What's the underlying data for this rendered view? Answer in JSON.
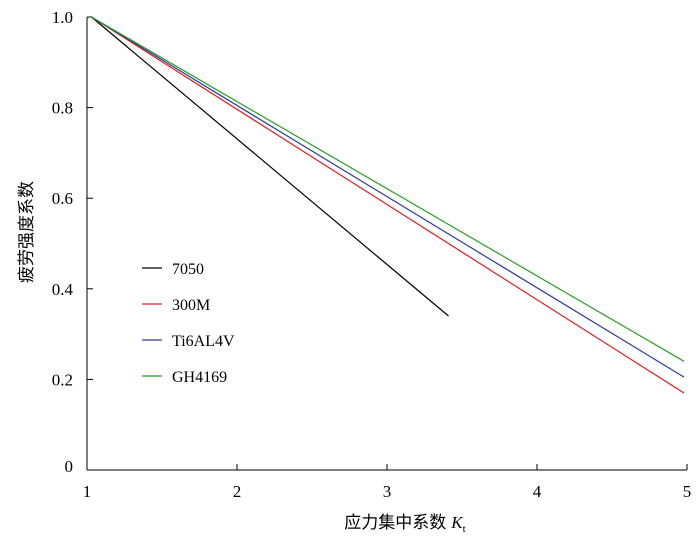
{
  "chart_data": {
    "type": "line",
    "xlabel": "应力集中系数",
    "xlabel_symbol": "K",
    "xlabel_subscript": "t",
    "ylabel": "疲劳强度系数",
    "xlim": [
      1,
      5
    ],
    "ylim": [
      0,
      1.0
    ],
    "x_ticks": [
      1,
      2,
      3,
      4,
      5
    ],
    "y_ticks": [
      0,
      0.2,
      0.4,
      0.6,
      0.8,
      1.0
    ],
    "x_tick_labels": [
      "1",
      "2",
      "3",
      "4",
      "5"
    ],
    "y_tick_labels": [
      "0",
      "0.2",
      "0.4",
      "0.6",
      "0.8",
      "1.0"
    ],
    "grid": false,
    "legend_position": "center-left",
    "series": [
      {
        "name": "7050",
        "color": "#000000",
        "x": [
          1.03,
          3.41
        ],
        "y": [
          1.0,
          0.34
        ]
      },
      {
        "name": "300M",
        "color": "#e41a1c",
        "x": [
          1.03,
          4.98
        ],
        "y": [
          1.0,
          0.17
        ]
      },
      {
        "name": "Ti6AL4V",
        "color": "#2b3a9e",
        "x": [
          1.03,
          4.98
        ],
        "y": [
          1.0,
          0.205
        ]
      },
      {
        "name": "GH4169",
        "color": "#22a022",
        "x": [
          1.03,
          4.98
        ],
        "y": [
          1.0,
          0.24
        ]
      }
    ]
  }
}
